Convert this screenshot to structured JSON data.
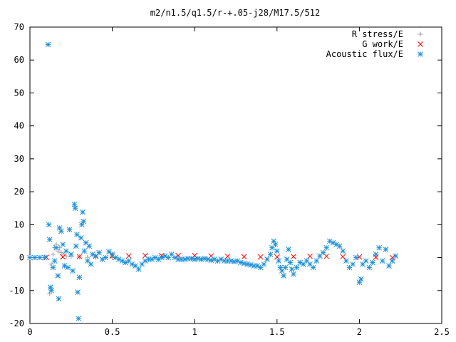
{
  "chart_data": {
    "type": "scatter",
    "title": "m2/n1.5/q1.5/r-+.05-j28/M17.5/512",
    "xlim": [
      0,
      2.5
    ],
    "ylim": [
      -20,
      70
    ],
    "xticks": [
      "0",
      "0.5",
      "1",
      "1.5",
      "2",
      "2.5"
    ],
    "xtick_values": [
      0,
      0.5,
      1,
      1.5,
      2,
      2.5
    ],
    "yticks": [
      "-20",
      "-10",
      "0",
      "10",
      "20",
      "30",
      "40",
      "50",
      "60",
      "70"
    ],
    "ytick_values": [
      -20,
      -10,
      0,
      10,
      20,
      30,
      40,
      50,
      60,
      70
    ],
    "grid": false,
    "legend_position": "top-right",
    "series": [
      {
        "name": "R stress/E",
        "marker": "plus",
        "color": "#a0a0a0",
        "points": [
          [
            0.12,
            -11
          ],
          [
            0.13,
            -2
          ],
          [
            0.14,
            1
          ],
          [
            0.15,
            3
          ],
          [
            0.16,
            4
          ],
          [
            0.17,
            2
          ],
          [
            0.18,
            3
          ],
          [
            0.19,
            1.5
          ],
          [
            0.2,
            1
          ],
          [
            0.22,
            0.5
          ],
          [
            0.25,
            0.3
          ],
          [
            0.3,
            0.2
          ],
          [
            0.35,
            0.1
          ],
          [
            0.4,
            0.1
          ],
          [
            0.5,
            0
          ]
        ]
      },
      {
        "name": "G work/E",
        "marker": "cross",
        "color": "#ff0000",
        "points": [
          [
            0.1,
            0.1
          ],
          [
            0.2,
            0.2
          ],
          [
            0.3,
            0.3
          ],
          [
            0.4,
            0.4
          ],
          [
            0.5,
            0.5
          ],
          [
            0.6,
            0.5
          ],
          [
            0.7,
            0.6
          ],
          [
            0.8,
            0.6
          ],
          [
            0.9,
            0.6
          ],
          [
            1.0,
            0.6
          ],
          [
            1.1,
            0.5
          ],
          [
            1.2,
            0.4
          ],
          [
            1.3,
            0.3
          ],
          [
            1.4,
            0.2
          ],
          [
            1.5,
            0.2
          ],
          [
            1.6,
            0.3
          ],
          [
            1.7,
            0.4
          ],
          [
            1.8,
            0.4
          ],
          [
            1.9,
            0.3
          ],
          [
            2.0,
            0.2
          ],
          [
            2.1,
            0.1
          ],
          [
            2.2,
            0
          ]
        ]
      },
      {
        "name": "Acoustic flux/E",
        "marker": "star",
        "color": "#1e90d8",
        "points": [
          [
            0.0,
            0
          ],
          [
            0.03,
            0
          ],
          [
            0.06,
            0
          ],
          [
            0.09,
            0
          ],
          [
            0.11,
            64.7
          ],
          [
            0.115,
            10
          ],
          [
            0.12,
            5.5
          ],
          [
            0.125,
            -9
          ],
          [
            0.13,
            -10
          ],
          [
            0.14,
            -3
          ],
          [
            0.15,
            -1
          ],
          [
            0.16,
            3
          ],
          [
            0.17,
            -5.5
          ],
          [
            0.175,
            -12.5
          ],
          [
            0.18,
            9
          ],
          [
            0.19,
            8
          ],
          [
            0.2,
            4
          ],
          [
            0.21,
            -2.5
          ],
          [
            0.22,
            2
          ],
          [
            0.23,
            -3
          ],
          [
            0.24,
            8.5
          ],
          [
            0.25,
            1
          ],
          [
            0.26,
            -4
          ],
          [
            0.27,
            16.2
          ],
          [
            0.275,
            15
          ],
          [
            0.28,
            3.5
          ],
          [
            0.285,
            7
          ],
          [
            0.29,
            -10.5
          ],
          [
            0.295,
            -18.5
          ],
          [
            0.3,
            -6
          ],
          [
            0.31,
            6
          ],
          [
            0.315,
            10
          ],
          [
            0.32,
            13.8
          ],
          [
            0.325,
            11
          ],
          [
            0.33,
            2
          ],
          [
            0.34,
            4.5
          ],
          [
            0.35,
            -1
          ],
          [
            0.36,
            3.5
          ],
          [
            0.37,
            -2
          ],
          [
            0.38,
            1
          ],
          [
            0.4,
            0.5
          ],
          [
            0.42,
            1.5
          ],
          [
            0.44,
            -0.5
          ],
          [
            0.46,
            0
          ],
          [
            0.48,
            1.8
          ],
          [
            0.5,
            1
          ],
          [
            0.52,
            0
          ],
          [
            0.54,
            -0.5
          ],
          [
            0.56,
            -1
          ],
          [
            0.58,
            -1.5
          ],
          [
            0.6,
            -1
          ],
          [
            0.62,
            -2
          ],
          [
            0.64,
            -2.5
          ],
          [
            0.66,
            -3.5
          ],
          [
            0.68,
            -2
          ],
          [
            0.7,
            -1
          ],
          [
            0.72,
            -0.5
          ],
          [
            0.74,
            -0.5
          ],
          [
            0.76,
            0
          ],
          [
            0.78,
            -0.5
          ],
          [
            0.8,
            0
          ],
          [
            0.82,
            0.5
          ],
          [
            0.84,
            0
          ],
          [
            0.86,
            1
          ],
          [
            0.88,
            0
          ],
          [
            0.9,
            -0.5
          ],
          [
            0.92,
            -0.5
          ],
          [
            0.94,
            -0.5
          ],
          [
            0.96,
            -0.3
          ],
          [
            0.98,
            -0.3
          ],
          [
            1.0,
            -0.5
          ],
          [
            1.02,
            -0.3
          ],
          [
            1.04,
            -0.5
          ],
          [
            1.06,
            -0.3
          ],
          [
            1.08,
            -0.5
          ],
          [
            1.1,
            -0.8
          ],
          [
            1.12,
            -0.5
          ],
          [
            1.14,
            -1
          ],
          [
            1.16,
            -0.5
          ],
          [
            1.18,
            -1
          ],
          [
            1.2,
            -1
          ],
          [
            1.22,
            -1
          ],
          [
            1.24,
            -1.2
          ],
          [
            1.26,
            -1
          ],
          [
            1.28,
            -1.5
          ],
          [
            1.3,
            -1.8
          ],
          [
            1.32,
            -2
          ],
          [
            1.34,
            -2.2
          ],
          [
            1.36,
            -2.5
          ],
          [
            1.38,
            -2.5
          ],
          [
            1.4,
            -3
          ],
          [
            1.42,
            -2
          ],
          [
            1.44,
            -0.5
          ],
          [
            1.46,
            1
          ],
          [
            1.47,
            3
          ],
          [
            1.48,
            5
          ],
          [
            1.49,
            4
          ],
          [
            1.5,
            2
          ],
          [
            1.51,
            -1
          ],
          [
            1.52,
            -3
          ],
          [
            1.53,
            -4
          ],
          [
            1.54,
            -5.5
          ],
          [
            1.55,
            -3
          ],
          [
            1.56,
            -0.5
          ],
          [
            1.57,
            2.5
          ],
          [
            1.58,
            -1.5
          ],
          [
            1.59,
            -3.5
          ],
          [
            1.6,
            -5
          ],
          [
            1.62,
            -3
          ],
          [
            1.64,
            -1.5
          ],
          [
            1.66,
            -2
          ],
          [
            1.68,
            -1
          ],
          [
            1.7,
            -2
          ],
          [
            1.72,
            -3
          ],
          [
            1.74,
            -1
          ],
          [
            1.76,
            0.5
          ],
          [
            1.78,
            1.5
          ],
          [
            1.8,
            3
          ],
          [
            1.82,
            5
          ],
          [
            1.84,
            4.5
          ],
          [
            1.86,
            4
          ],
          [
            1.88,
            3.5
          ],
          [
            1.9,
            2
          ],
          [
            1.92,
            -1
          ],
          [
            1.94,
            -3
          ],
          [
            1.96,
            -2
          ],
          [
            1.98,
            0
          ],
          [
            2.0,
            -7.5
          ],
          [
            2.01,
            -6.5
          ],
          [
            2.02,
            -2
          ],
          [
            2.04,
            -1
          ],
          [
            2.06,
            -3
          ],
          [
            2.08,
            -1.5
          ],
          [
            2.1,
            1
          ],
          [
            2.12,
            3
          ],
          [
            2.14,
            -1
          ],
          [
            2.16,
            2.5
          ],
          [
            2.18,
            -2.5
          ],
          [
            2.2,
            -1
          ],
          [
            2.22,
            0.5
          ]
        ]
      }
    ]
  }
}
